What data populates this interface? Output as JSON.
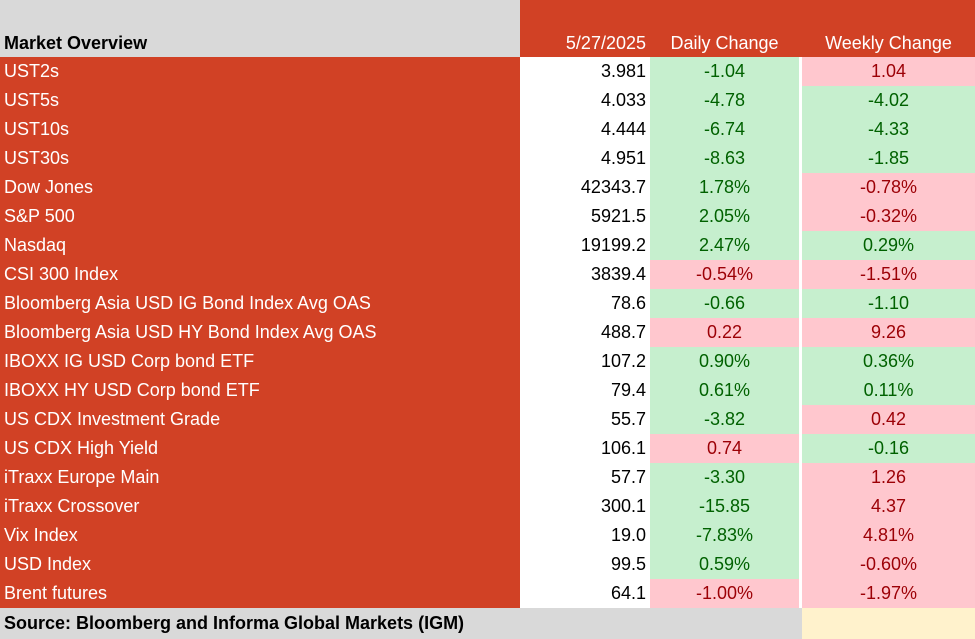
{
  "header": {
    "title": "Market Overview",
    "date": "5/27/2025",
    "daily_change": "Daily Change",
    "weekly_change": "Weekly Change"
  },
  "rows": [
    {
      "name": "UST2s",
      "value": "3.981",
      "daily": "-1.04",
      "daily_status": "positive",
      "weekly": "1.04",
      "weekly_status": "negative"
    },
    {
      "name": "UST5s",
      "value": "4.033",
      "daily": "-4.78",
      "daily_status": "positive",
      "weekly": "-4.02",
      "weekly_status": "positive"
    },
    {
      "name": "UST10s",
      "value": "4.444",
      "daily": "-6.74",
      "daily_status": "positive",
      "weekly": "-4.33",
      "weekly_status": "positive"
    },
    {
      "name": "UST30s",
      "value": "4.951",
      "daily": "-8.63",
      "daily_status": "positive",
      "weekly": "-1.85",
      "weekly_status": "positive"
    },
    {
      "name": "Dow Jones",
      "value": "42343.7",
      "daily": "1.78%",
      "daily_status": "positive",
      "weekly": "-0.78%",
      "weekly_status": "negative"
    },
    {
      "name": "S&P 500",
      "value": "5921.5",
      "daily": "2.05%",
      "daily_status": "positive",
      "weekly": "-0.32%",
      "weekly_status": "negative"
    },
    {
      "name": "Nasdaq",
      "value": "19199.2",
      "daily": "2.47%",
      "daily_status": "positive",
      "weekly": "0.29%",
      "weekly_status": "positive"
    },
    {
      "name": "CSI 300  Index",
      "value": "3839.4",
      "daily": "-0.54%",
      "daily_status": "negative",
      "weekly": "-1.51%",
      "weekly_status": "negative"
    },
    {
      "name": "Bloomberg Asia USD IG Bond Index Avg OAS",
      "value": "78.6",
      "daily": "-0.66",
      "daily_status": "positive",
      "weekly": "-1.10",
      "weekly_status": "positive"
    },
    {
      "name": "Bloomberg Asia USD HY Bond Index Avg OAS",
      "value": "488.7",
      "daily": "0.22",
      "daily_status": "negative",
      "weekly": "9.26",
      "weekly_status": "negative"
    },
    {
      "name": "IBOXX IG USD Corp bond ETF",
      "value": "107.2",
      "daily": "0.90%",
      "daily_status": "positive",
      "weekly": "0.36%",
      "weekly_status": "positive"
    },
    {
      "name": "IBOXX HY USD Corp bond ETF",
      "value": "79.4",
      "daily": "0.61%",
      "daily_status": "positive",
      "weekly": "0.11%",
      "weekly_status": "positive"
    },
    {
      "name": "US CDX Investment Grade",
      "value": "55.7",
      "daily": "-3.82",
      "daily_status": "positive",
      "weekly": "0.42",
      "weekly_status": "negative"
    },
    {
      "name": "US CDX High Yield",
      "value": "106.1",
      "daily": "0.74",
      "daily_status": "negative",
      "weekly": "-0.16",
      "weekly_status": "positive"
    },
    {
      "name": "iTraxx Europe Main",
      "value": "57.7",
      "daily": "-3.30",
      "daily_status": "positive",
      "weekly": "1.26",
      "weekly_status": "negative"
    },
    {
      "name": "iTraxx Crossover",
      "value": "300.1",
      "daily": "-15.85",
      "daily_status": "positive",
      "weekly": "4.37",
      "weekly_status": "negative"
    },
    {
      "name": "Vix Index",
      "value": "19.0",
      "daily": "-7.83%",
      "daily_status": "positive",
      "weekly": "4.81%",
      "weekly_status": "negative"
    },
    {
      "name": "USD Index",
      "value": "99.5",
      "daily": "0.59%",
      "daily_status": "positive",
      "weekly": "-0.60%",
      "weekly_status": "negative"
    },
    {
      "name": "Brent futures",
      "value": "64.1",
      "daily": "-1.00%",
      "daily_status": "negative",
      "weekly": "-1.97%",
      "weekly_status": "negative"
    }
  ],
  "footer": {
    "source": "Source: Bloomberg and Informa Global Markets (IGM)"
  },
  "colors": {
    "accent": "#d14125",
    "positive_bg": "#c6efce",
    "positive_text": "#006100",
    "negative_bg": "#ffc7ce",
    "negative_text": "#9c0006"
  }
}
